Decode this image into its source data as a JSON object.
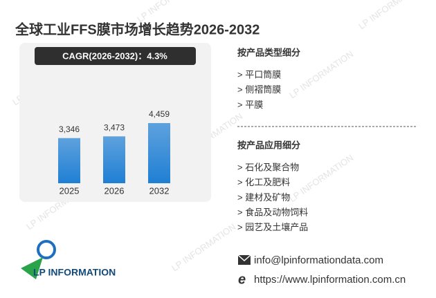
{
  "chart_data": {
    "type": "bar",
    "title": "全球工业FFS膜市场增长趋势2026-2032",
    "subtitle": "CAGR(2026-2032)：4.3%",
    "categories": [
      "2025",
      "2026",
      "2032"
    ],
    "values": [
      3346,
      3473,
      4459
    ],
    "value_labels": [
      "3,346",
      "3,473",
      "4,459"
    ],
    "color": "#1f7fd4"
  },
  "segments": [
    {
      "title": "按产品类型细分",
      "items": [
        "> 平口筒膜",
        "> 侧褶筒膜",
        "> 平膜"
      ]
    },
    {
      "title": "按产品应用细分",
      "items": [
        "> 石化及聚合物",
        "> 化工及肥料",
        "> 建材及矿物",
        "> 食品及动物饲料",
        "> 园艺及土壤产品"
      ]
    }
  ],
  "contact": {
    "email": "info@lpinformationdata.com",
    "web": "https://www.lpinformation.com.cn"
  },
  "logo": "LP INFORMATION"
}
